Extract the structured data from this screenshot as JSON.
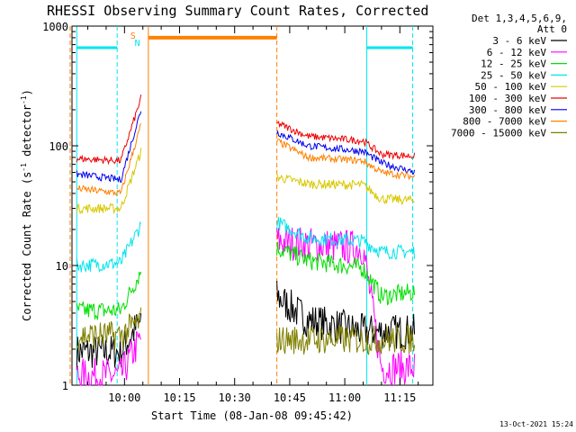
{
  "chart_data": {
    "type": "line",
    "title": "RHESSI Observing Summary Count Rates, Corrected",
    "xlabel": "Start Time (08-Jan-08 09:45:42)",
    "ylabel": "Corrected Count Rate (s⁻¹ detector⁻¹)",
    "ylabel_parts": {
      "main": "Corrected Count Rate (s",
      "sup1": "-1",
      "mid": " detector",
      "sup2": "-1",
      "end": ")"
    },
    "y_scale": "log",
    "ylim": [
      1,
      1000
    ],
    "xlim": [
      "09:45:42",
      "11:24"
    ],
    "x_tick_labels": [
      "10:00",
      "10:15",
      "10:30",
      "10:45",
      "11:00",
      "11:15"
    ],
    "x_ticks_min": [
      600,
      615,
      630,
      645,
      660,
      675
    ],
    "y_tick_labels": [
      "1",
      "10",
      "100",
      "1000"
    ],
    "y_ticks": [
      1,
      10,
      100,
      1000
    ],
    "grid": false,
    "legend_placement": "right",
    "legend_header": [
      "Det 1,3,4,5,6,9,",
      "Att 0"
    ],
    "series": [
      {
        "name": "3 - 6 keV",
        "color": "#000000"
      },
      {
        "name": "6 - 12 keV",
        "color": "#ff00ff"
      },
      {
        "name": "12 - 25 keV",
        "color": "#00e000"
      },
      {
        "name": "25 - 50 keV",
        "color": "#00e5ee"
      },
      {
        "name": "50 - 100 keV",
        "color": "#d8c800"
      },
      {
        "name": "100 - 300 keV",
        "color": "#ee0000"
      },
      {
        "name": "300 - 800 keV",
        "color": "#0000ee"
      },
      {
        "name": "800 - 7000 keV",
        "color": "#ff8000"
      },
      {
        "name": "7000 - 15000 keV",
        "color": "#808000"
      }
    ],
    "segments": [
      {
        "t": [
          587,
          599,
          604.5
        ],
        "values": {
          "3 - 6 keV": [
            1.9,
            1.9,
            3.5
          ],
          "6 - 12 keV": [
            1.2,
            1.2,
            2.5
          ],
          "12 - 25 keV": [
            4.2,
            4.2,
            9
          ],
          "25 - 50 keV": [
            10,
            10.5,
            22
          ],
          "50 - 100 keV": [
            30,
            30,
            90
          ],
          "100 - 300 keV": [
            78,
            75,
            250
          ],
          "300 - 800 keV": [
            58,
            52,
            200
          ],
          "800 - 7000 keV": [
            44,
            40,
            150
          ],
          "7000 - 15000 keV": [
            2.6,
            2.6,
            3.5
          ]
        }
      },
      {
        "t": [
          641.5,
          650,
          665,
          670,
          679
        ],
        "values": {
          "3 - 6 keV": [
            5.5,
            3.5,
            2.8,
            2.8,
            2.8
          ],
          "6 - 12 keV": [
            16,
            15,
            14,
            1.4,
            1.4
          ],
          "12 - 25 keV": [
            14,
            11,
            9.5,
            5.5,
            6
          ],
          "25 - 50 keV": [
            23,
            17,
            16,
            13,
            13
          ],
          "50 - 100 keV": [
            55,
            48,
            47,
            36,
            35
          ],
          "100 - 300 keV": [
            155,
            120,
            110,
            85,
            82
          ],
          "300 - 800 keV": [
            130,
            100,
            90,
            72,
            60
          ],
          "800 - 7000 keV": [
            110,
            80,
            75,
            60,
            55
          ],
          "7000 - 15000 keV": [
            2.4,
            2.4,
            2.4,
            2.4,
            2.4
          ]
        }
      }
    ],
    "attenuator": {
      "level": 660,
      "color": "#00e5ee",
      "intervals": [
        [
          587,
          598
        ],
        [
          666,
          678.5
        ]
      ]
    },
    "saa": {
      "level": 800,
      "color": "#ff8000",
      "interval": [
        606.5,
        641.5
      ]
    },
    "markers": [
      {
        "label": "S",
        "color": "#ff8000"
      },
      {
        "label": "N",
        "color": "#00e5ee"
      }
    ],
    "timestamp": "13-Oct-2021 15:24"
  }
}
